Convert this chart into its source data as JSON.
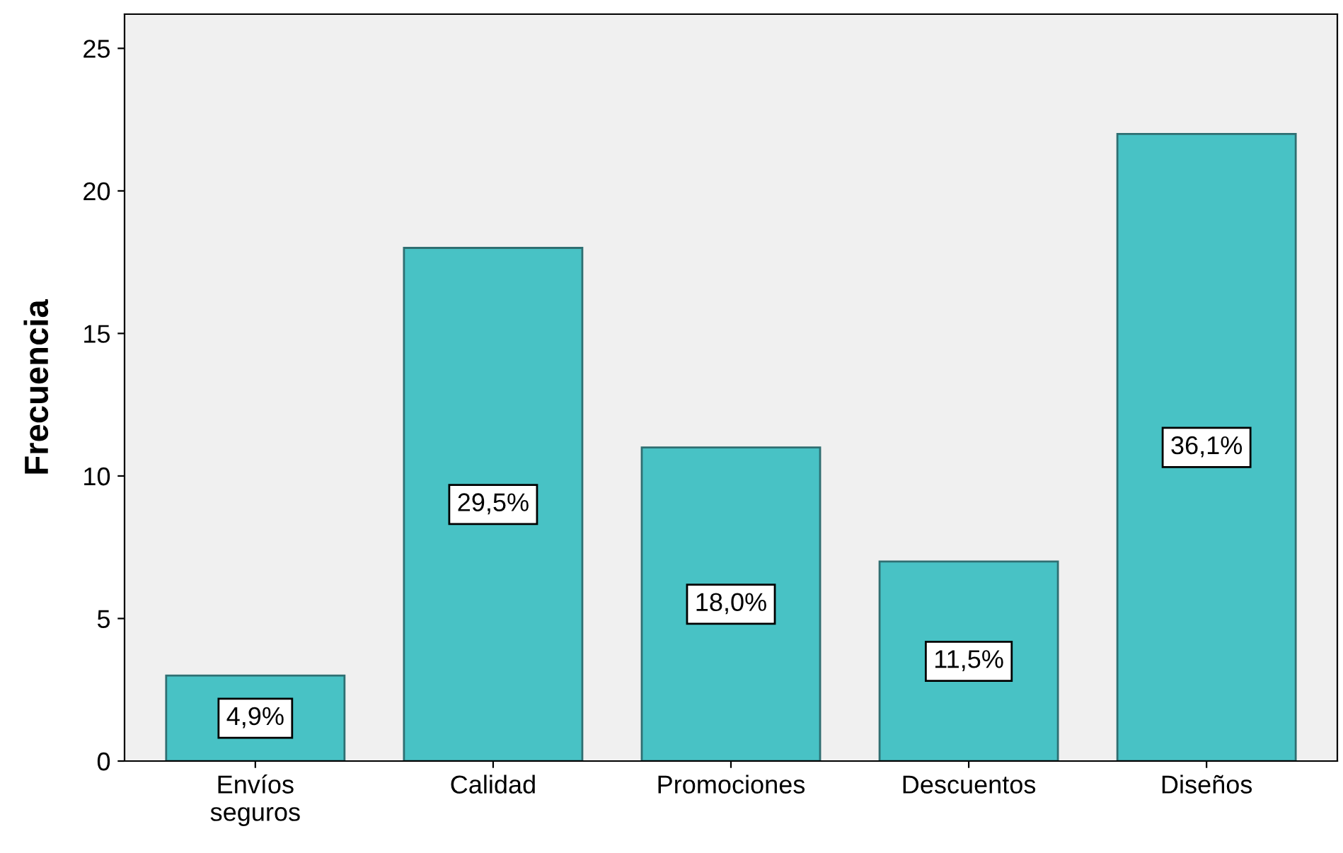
{
  "chart_data": {
    "type": "bar",
    "ylabel": "Frecuencia",
    "categories": [
      "Envíos\nseguros",
      "Calidad",
      "Promociones",
      "Descuentos",
      "Diseños"
    ],
    "values": [
      3,
      18,
      11,
      7,
      22
    ],
    "annotations": [
      "4,9%",
      "29,5%",
      "18,0%",
      "11,5%",
      "36,1%"
    ],
    "color": "#48c2c5",
    "ylim": [
      0,
      26.2
    ],
    "yticks": [
      0,
      5,
      10,
      15,
      20,
      25
    ],
    "grid": false,
    "legend": false
  }
}
